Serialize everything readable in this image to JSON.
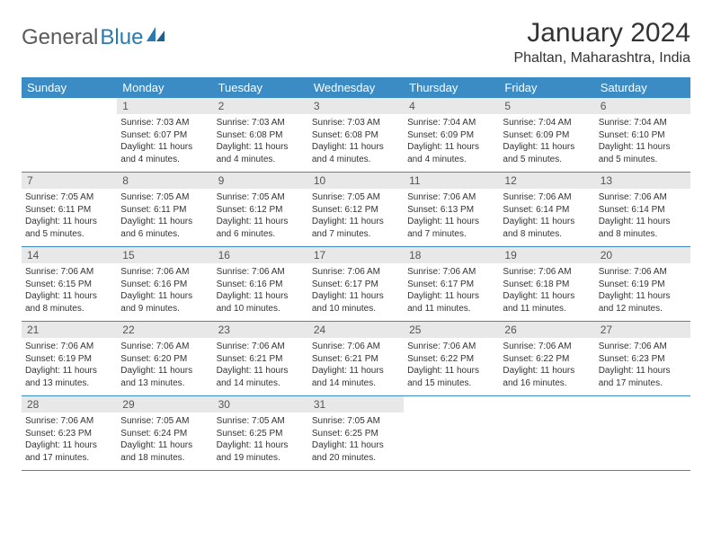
{
  "logo": {
    "part1": "General",
    "part2": "Blue"
  },
  "title": "January 2024",
  "location": "Phaltan, Maharashtra, India",
  "colors": {
    "header_bg": "#3b8bc4",
    "header_text": "#ffffff",
    "daynum_bg": "#e8e8e8",
    "daynum_text": "#555555",
    "body_text": "#333333",
    "border": "#3b8bc4",
    "logo_gray": "#5a5a5a",
    "logo_blue": "#2a7ab0",
    "background": "#ffffff"
  },
  "typography": {
    "title_fontsize": 30,
    "location_fontsize": 16,
    "weekday_fontsize": 13,
    "daynum_fontsize": 12,
    "body_fontsize": 10,
    "logo_fontsize": 24
  },
  "weekdays": [
    "Sunday",
    "Monday",
    "Tuesday",
    "Wednesday",
    "Thursday",
    "Friday",
    "Saturday"
  ],
  "weeks": [
    [
      {
        "n": "",
        "lines": []
      },
      {
        "n": "1",
        "lines": [
          "Sunrise: 7:03 AM",
          "Sunset: 6:07 PM",
          "Daylight: 11 hours",
          "and 4 minutes."
        ]
      },
      {
        "n": "2",
        "lines": [
          "Sunrise: 7:03 AM",
          "Sunset: 6:08 PM",
          "Daylight: 11 hours",
          "and 4 minutes."
        ]
      },
      {
        "n": "3",
        "lines": [
          "Sunrise: 7:03 AM",
          "Sunset: 6:08 PM",
          "Daylight: 11 hours",
          "and 4 minutes."
        ]
      },
      {
        "n": "4",
        "lines": [
          "Sunrise: 7:04 AM",
          "Sunset: 6:09 PM",
          "Daylight: 11 hours",
          "and 4 minutes."
        ]
      },
      {
        "n": "5",
        "lines": [
          "Sunrise: 7:04 AM",
          "Sunset: 6:09 PM",
          "Daylight: 11 hours",
          "and 5 minutes."
        ]
      },
      {
        "n": "6",
        "lines": [
          "Sunrise: 7:04 AM",
          "Sunset: 6:10 PM",
          "Daylight: 11 hours",
          "and 5 minutes."
        ]
      }
    ],
    [
      {
        "n": "7",
        "lines": [
          "Sunrise: 7:05 AM",
          "Sunset: 6:11 PM",
          "Daylight: 11 hours",
          "and 5 minutes."
        ]
      },
      {
        "n": "8",
        "lines": [
          "Sunrise: 7:05 AM",
          "Sunset: 6:11 PM",
          "Daylight: 11 hours",
          "and 6 minutes."
        ]
      },
      {
        "n": "9",
        "lines": [
          "Sunrise: 7:05 AM",
          "Sunset: 6:12 PM",
          "Daylight: 11 hours",
          "and 6 minutes."
        ]
      },
      {
        "n": "10",
        "lines": [
          "Sunrise: 7:05 AM",
          "Sunset: 6:12 PM",
          "Daylight: 11 hours",
          "and 7 minutes."
        ]
      },
      {
        "n": "11",
        "lines": [
          "Sunrise: 7:06 AM",
          "Sunset: 6:13 PM",
          "Daylight: 11 hours",
          "and 7 minutes."
        ]
      },
      {
        "n": "12",
        "lines": [
          "Sunrise: 7:06 AM",
          "Sunset: 6:14 PM",
          "Daylight: 11 hours",
          "and 8 minutes."
        ]
      },
      {
        "n": "13",
        "lines": [
          "Sunrise: 7:06 AM",
          "Sunset: 6:14 PM",
          "Daylight: 11 hours",
          "and 8 minutes."
        ]
      }
    ],
    [
      {
        "n": "14",
        "lines": [
          "Sunrise: 7:06 AM",
          "Sunset: 6:15 PM",
          "Daylight: 11 hours",
          "and 8 minutes."
        ]
      },
      {
        "n": "15",
        "lines": [
          "Sunrise: 7:06 AM",
          "Sunset: 6:16 PM",
          "Daylight: 11 hours",
          "and 9 minutes."
        ]
      },
      {
        "n": "16",
        "lines": [
          "Sunrise: 7:06 AM",
          "Sunset: 6:16 PM",
          "Daylight: 11 hours",
          "and 10 minutes."
        ]
      },
      {
        "n": "17",
        "lines": [
          "Sunrise: 7:06 AM",
          "Sunset: 6:17 PM",
          "Daylight: 11 hours",
          "and 10 minutes."
        ]
      },
      {
        "n": "18",
        "lines": [
          "Sunrise: 7:06 AM",
          "Sunset: 6:17 PM",
          "Daylight: 11 hours",
          "and 11 minutes."
        ]
      },
      {
        "n": "19",
        "lines": [
          "Sunrise: 7:06 AM",
          "Sunset: 6:18 PM",
          "Daylight: 11 hours",
          "and 11 minutes."
        ]
      },
      {
        "n": "20",
        "lines": [
          "Sunrise: 7:06 AM",
          "Sunset: 6:19 PM",
          "Daylight: 11 hours",
          "and 12 minutes."
        ]
      }
    ],
    [
      {
        "n": "21",
        "lines": [
          "Sunrise: 7:06 AM",
          "Sunset: 6:19 PM",
          "Daylight: 11 hours",
          "and 13 minutes."
        ]
      },
      {
        "n": "22",
        "lines": [
          "Sunrise: 7:06 AM",
          "Sunset: 6:20 PM",
          "Daylight: 11 hours",
          "and 13 minutes."
        ]
      },
      {
        "n": "23",
        "lines": [
          "Sunrise: 7:06 AM",
          "Sunset: 6:21 PM",
          "Daylight: 11 hours",
          "and 14 minutes."
        ]
      },
      {
        "n": "24",
        "lines": [
          "Sunrise: 7:06 AM",
          "Sunset: 6:21 PM",
          "Daylight: 11 hours",
          "and 14 minutes."
        ]
      },
      {
        "n": "25",
        "lines": [
          "Sunrise: 7:06 AM",
          "Sunset: 6:22 PM",
          "Daylight: 11 hours",
          "and 15 minutes."
        ]
      },
      {
        "n": "26",
        "lines": [
          "Sunrise: 7:06 AM",
          "Sunset: 6:22 PM",
          "Daylight: 11 hours",
          "and 16 minutes."
        ]
      },
      {
        "n": "27",
        "lines": [
          "Sunrise: 7:06 AM",
          "Sunset: 6:23 PM",
          "Daylight: 11 hours",
          "and 17 minutes."
        ]
      }
    ],
    [
      {
        "n": "28",
        "lines": [
          "Sunrise: 7:06 AM",
          "Sunset: 6:23 PM",
          "Daylight: 11 hours",
          "and 17 minutes."
        ]
      },
      {
        "n": "29",
        "lines": [
          "Sunrise: 7:05 AM",
          "Sunset: 6:24 PM",
          "Daylight: 11 hours",
          "and 18 minutes."
        ]
      },
      {
        "n": "30",
        "lines": [
          "Sunrise: 7:05 AM",
          "Sunset: 6:25 PM",
          "Daylight: 11 hours",
          "and 19 minutes."
        ]
      },
      {
        "n": "31",
        "lines": [
          "Sunrise: 7:05 AM",
          "Sunset: 6:25 PM",
          "Daylight: 11 hours",
          "and 20 minutes."
        ]
      },
      {
        "n": "",
        "lines": []
      },
      {
        "n": "",
        "lines": []
      },
      {
        "n": "",
        "lines": []
      }
    ]
  ]
}
